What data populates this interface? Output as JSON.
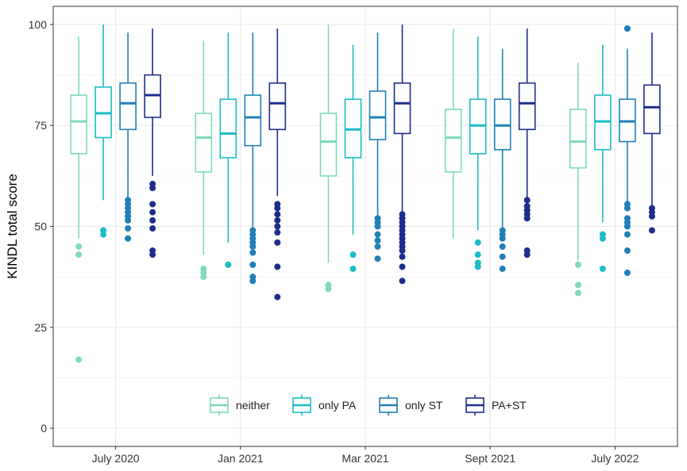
{
  "chart_data": {
    "type": "boxplot",
    "ylabel": "KINDL total score",
    "xlabel": "",
    "ylim": [
      0,
      100
    ],
    "yticks": [
      0,
      25,
      50,
      75,
      100
    ],
    "grid": true,
    "legend_position": "bottom-inside",
    "categories": [
      "July 2020",
      "Jan 2021",
      "Mar 2021",
      "Sept 2021",
      "July 2022"
    ],
    "series": [
      {
        "name": "neither",
        "color": "#7fd8c0",
        "boxes": [
          {
            "min": 47,
            "q1": 68,
            "median": 76,
            "q3": 82.5,
            "max": 97,
            "outliers": [
              45,
              43,
              17
            ]
          },
          {
            "min": 43,
            "q1": 63.5,
            "median": 72,
            "q3": 78,
            "max": 96,
            "outliers": [
              39.5,
              38.5,
              37.5
            ]
          },
          {
            "min": 41,
            "q1": 62.5,
            "median": 71,
            "q3": 78,
            "max": 100,
            "outliers": [
              35.5,
              34.5
            ]
          },
          {
            "min": 47,
            "q1": 63.5,
            "median": 72,
            "q3": 79,
            "max": 99,
            "outliers": []
          },
          {
            "min": 41.5,
            "q1": 64.5,
            "median": 71,
            "q3": 79,
            "max": 90.5,
            "outliers": [
              40.5,
              35.5,
              33.5
            ]
          }
        ]
      },
      {
        "name": "only PA",
        "color": "#1bbcc6",
        "boxes": [
          {
            "min": 56.5,
            "q1": 72,
            "median": 78,
            "q3": 84.5,
            "max": 100,
            "outliers": [
              49,
              48
            ]
          },
          {
            "min": 46,
            "q1": 67,
            "median": 73,
            "q3": 81.5,
            "max": 98,
            "outliers": [
              40.5
            ]
          },
          {
            "min": 48,
            "q1": 67,
            "median": 74,
            "q3": 81.5,
            "max": 95,
            "outliers": [
              43,
              39.5
            ]
          },
          {
            "min": 49,
            "q1": 68,
            "median": 75,
            "q3": 81.5,
            "max": 97,
            "outliers": [
              46,
              43,
              41,
              40
            ]
          },
          {
            "min": 51,
            "q1": 69,
            "median": 76,
            "q3": 82.5,
            "max": 95,
            "outliers": [
              48,
              47,
              39.5
            ]
          }
        ]
      },
      {
        "name": "only ST",
        "color": "#1f7fb8",
        "boxes": [
          {
            "min": 57,
            "q1": 74,
            "median": 80.5,
            "q3": 85.5,
            "max": 98,
            "outliers": [
              56.5,
              55.5,
              54.5,
              53.5,
              52.5,
              51.5,
              49.5,
              47
            ]
          },
          {
            "min": 49.5,
            "q1": 70,
            "median": 77,
            "q3": 82.5,
            "max": 98,
            "outliers": [
              49,
              48,
              47,
              46,
              45,
              43.5,
              40.5,
              37.5,
              36.5
            ]
          },
          {
            "min": 52.5,
            "q1": 71.5,
            "median": 77,
            "q3": 83.5,
            "max": 98,
            "outliers": [
              52,
              51,
              50,
              48,
              46.5,
              45,
              42
            ]
          },
          {
            "min": 49.5,
            "q1": 69,
            "median": 75,
            "q3": 81.5,
            "max": 94,
            "outliers": [
              49,
              48,
              47,
              45,
              42.5,
              39.5
            ]
          },
          {
            "min": 56,
            "q1": 71,
            "median": 76,
            "q3": 81.5,
            "max": 94,
            "outliers": [
              99,
              55.5,
              54.5,
              52,
              51,
              50,
              48,
              44,
              38.5
            ]
          }
        ]
      },
      {
        "name": "PA+ST",
        "color": "#1e2d8c",
        "boxes": [
          {
            "min": 62.5,
            "q1": 77,
            "median": 82.5,
            "q3": 87.5,
            "max": 99,
            "outliers": [
              60.5,
              59.5,
              55.5,
              53.5,
              51.5,
              49.5,
              44,
              43
            ]
          },
          {
            "min": 57.5,
            "q1": 74,
            "median": 80.5,
            "q3": 85.5,
            "max": 99,
            "outliers": [
              55.5,
              54.5,
              53,
              51.5,
              50,
              48.5,
              46,
              40,
              32.5
            ]
          },
          {
            "min": 53.5,
            "q1": 73,
            "median": 80.5,
            "q3": 85.5,
            "max": 100,
            "outliers": [
              53,
              52,
              51,
              50,
              49,
              48,
              47,
              46,
              45,
              44,
              42.5,
              40,
              36.5
            ]
          },
          {
            "min": 57,
            "q1": 74,
            "median": 80.5,
            "q3": 85.5,
            "max": 99,
            "outliers": [
              56.5,
              55,
              54,
              53,
              52,
              44,
              43
            ]
          },
          {
            "min": 55,
            "q1": 73,
            "median": 79.5,
            "q3": 85,
            "max": 98,
            "outliers": [
              54.5,
              53.5,
              52.5,
              49
            ]
          }
        ]
      }
    ]
  }
}
